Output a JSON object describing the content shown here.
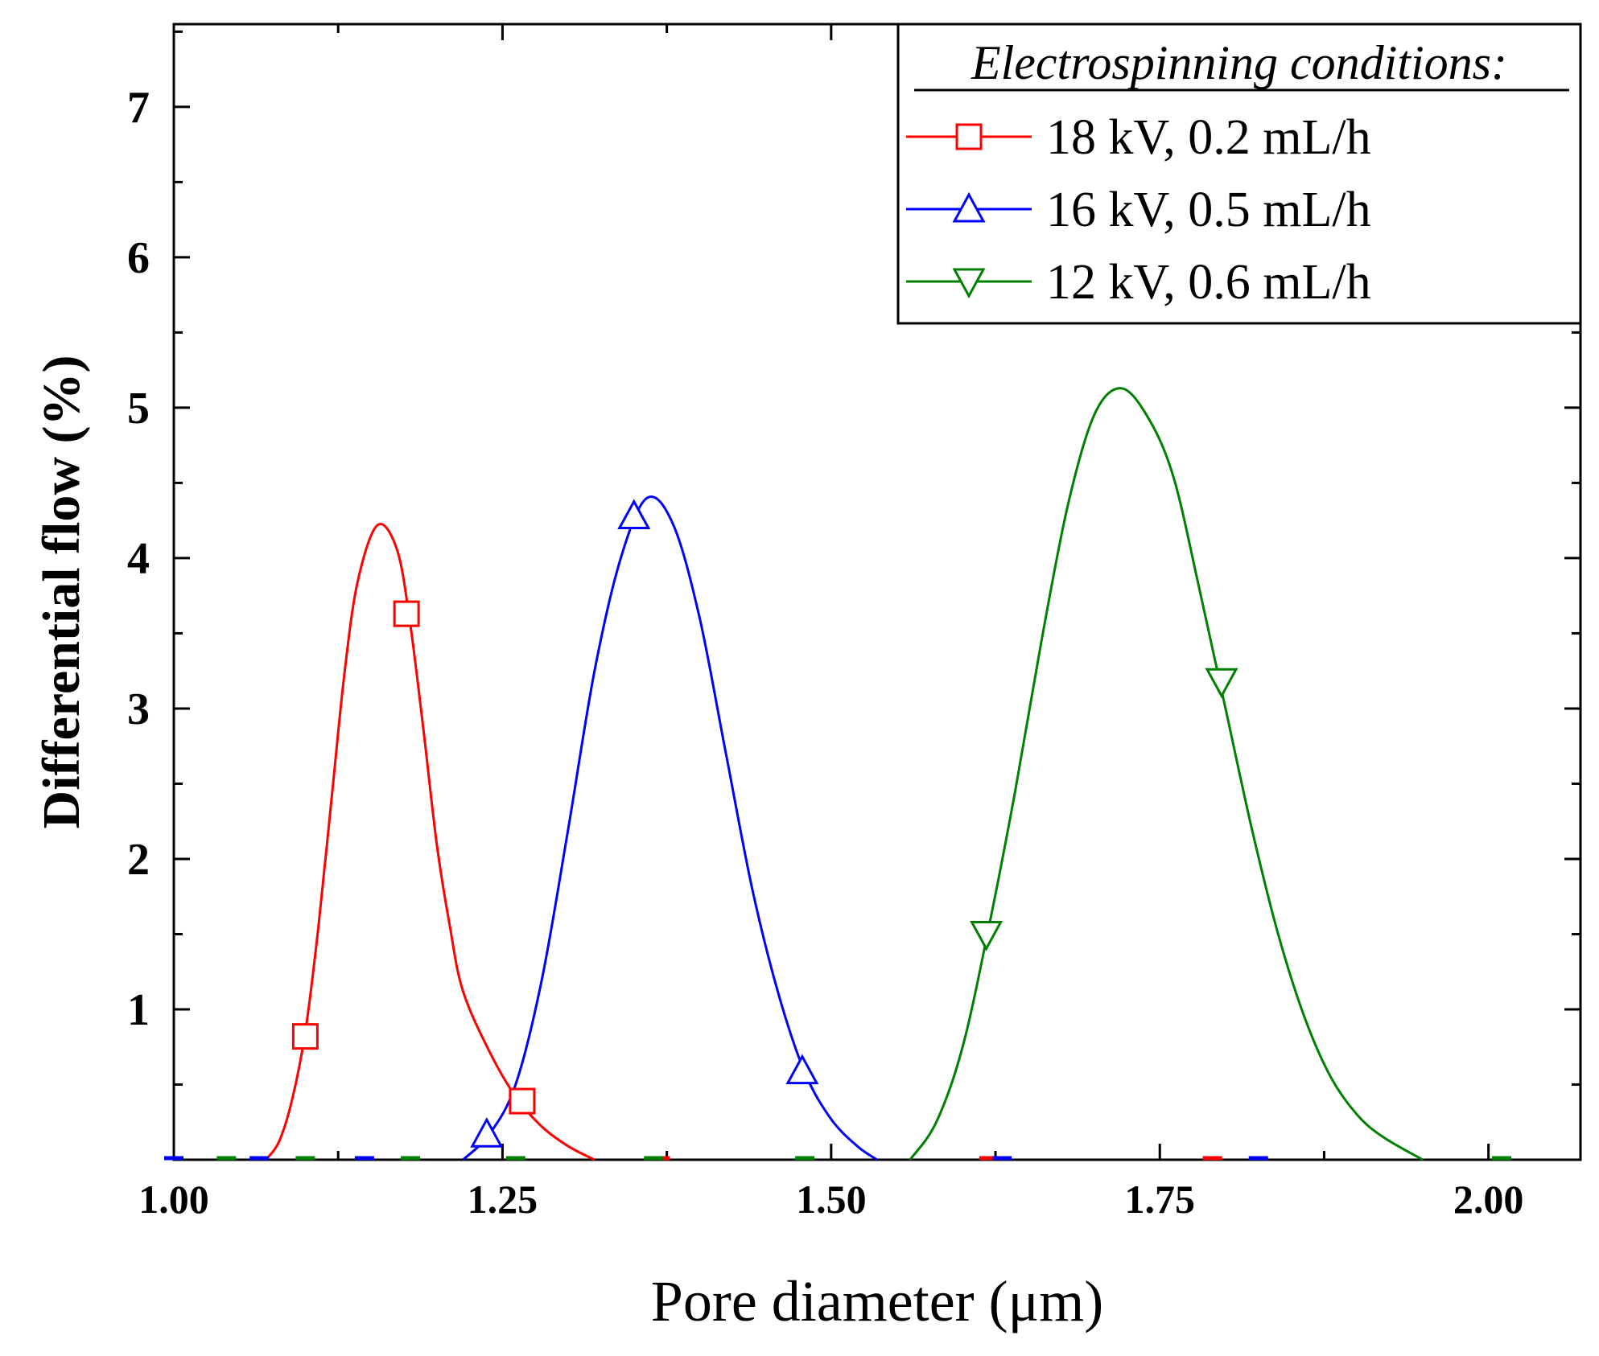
{
  "chart_data": {
    "type": "line",
    "title": "",
    "xlabel": "Pore diameter (μm)",
    "ylabel": "Differential flow (%)",
    "xlim": [
      1.0,
      2.07
    ],
    "ylim": [
      0.0,
      7.55
    ],
    "x_ticks": [
      1.0,
      1.25,
      1.5,
      1.75,
      2.0
    ],
    "x_tick_labels": [
      "1.00",
      "1.25",
      "1.50",
      "1.75",
      "2.00"
    ],
    "y_ticks": [
      1,
      2,
      3,
      4,
      5,
      6,
      7
    ],
    "y_tick_labels": [
      "1",
      "2",
      "3",
      "4",
      "5",
      "6",
      "7"
    ],
    "legend": {
      "title": "Electrospinning conditions:",
      "placement": "top-right"
    },
    "series": [
      {
        "name": "18 kV, 0.2 mL/h",
        "color": "#ff0000",
        "marker": "square",
        "points": [
          [
            1.07,
            0.0
          ],
          [
            1.08,
            0.12
          ],
          [
            1.09,
            0.4
          ],
          [
            1.1,
            0.85
          ],
          [
            1.11,
            1.55
          ],
          [
            1.12,
            2.4
          ],
          [
            1.13,
            3.25
          ],
          [
            1.14,
            3.85
          ],
          [
            1.155,
            4.22
          ],
          [
            1.17,
            4.05
          ],
          [
            1.18,
            3.55
          ],
          [
            1.19,
            2.85
          ],
          [
            1.2,
            2.1
          ],
          [
            1.21,
            1.55
          ],
          [
            1.22,
            1.12
          ],
          [
            1.24,
            0.72
          ],
          [
            1.26,
            0.42
          ],
          [
            1.28,
            0.22
          ],
          [
            1.3,
            0.09
          ],
          [
            1.32,
            0.0
          ]
        ],
        "marked_points": [
          [
            1.1,
            0.82
          ],
          [
            1.177,
            3.63
          ],
          [
            1.265,
            0.39
          ],
          [
            1.37,
            0.0
          ],
          [
            1.62,
            0.0
          ],
          [
            1.79,
            0.0
          ]
        ]
      },
      {
        "name": "16 kV, 0.5 mL/h",
        "color": "#0000ff",
        "marker": "triangle-up",
        "points": [
          [
            1.22,
            0.0
          ],
          [
            1.24,
            0.17
          ],
          [
            1.26,
            0.5
          ],
          [
            1.28,
            1.2
          ],
          [
            1.3,
            2.2
          ],
          [
            1.32,
            3.25
          ],
          [
            1.34,
            4.0
          ],
          [
            1.36,
            4.4
          ],
          [
            1.38,
            4.22
          ],
          [
            1.4,
            3.6
          ],
          [
            1.42,
            2.7
          ],
          [
            1.44,
            1.8
          ],
          [
            1.46,
            1.1
          ],
          [
            1.48,
            0.58
          ],
          [
            1.5,
            0.27
          ],
          [
            1.52,
            0.09
          ],
          [
            1.535,
            0.0
          ]
        ],
        "marked_points": [
          [
            1.0,
            0.0
          ],
          [
            1.065,
            0.0
          ],
          [
            1.145,
            0.0
          ],
          [
            1.238,
            0.17
          ],
          [
            1.35,
            4.28
          ],
          [
            1.478,
            0.59
          ],
          [
            1.63,
            0.0
          ],
          [
            1.825,
            0.0
          ]
        ]
      },
      {
        "name": "12 kV, 0.6 mL/h",
        "color": "#008000",
        "marker": "triangle-down",
        "points": [
          [
            1.56,
            0.0
          ],
          [
            1.58,
            0.25
          ],
          [
            1.6,
            0.75
          ],
          [
            1.62,
            1.55
          ],
          [
            1.64,
            2.45
          ],
          [
            1.66,
            3.45
          ],
          [
            1.68,
            4.35
          ],
          [
            1.7,
            4.95
          ],
          [
            1.72,
            5.13
          ],
          [
            1.74,
            4.95
          ],
          [
            1.76,
            4.55
          ],
          [
            1.78,
            3.8
          ],
          [
            1.8,
            3.0
          ],
          [
            1.82,
            2.2
          ],
          [
            1.84,
            1.5
          ],
          [
            1.86,
            0.95
          ],
          [
            1.88,
            0.55
          ],
          [
            1.9,
            0.3
          ],
          [
            1.92,
            0.15
          ],
          [
            1.95,
            0.0
          ]
        ],
        "marked_points": [
          [
            1.618,
            1.5
          ],
          [
            1.797,
            3.18
          ],
          [
            1.04,
            0.0
          ],
          [
            1.1,
            0.0
          ],
          [
            1.18,
            0.0
          ],
          [
            1.26,
            0.0
          ],
          [
            1.365,
            0.0
          ],
          [
            1.48,
            0.0
          ],
          [
            2.01,
            0.0
          ]
        ]
      }
    ]
  }
}
